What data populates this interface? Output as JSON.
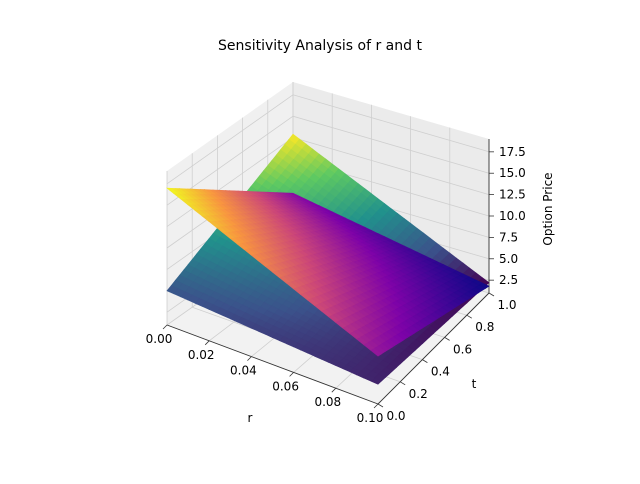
{
  "chart_data": {
    "type": "surface3d",
    "title": "Sensitivity Analysis of r and t",
    "xlabel": "r",
    "ylabel": "t",
    "zlabel": "Option Price",
    "xlim": [
      0.0,
      0.1
    ],
    "ylim": [
      0.0,
      1.0
    ],
    "zlim": [
      1.0,
      19.0
    ],
    "x_ticks": [
      "0.00",
      "0.02",
      "0.04",
      "0.06",
      "0.08",
      "0.10"
    ],
    "y_ticks": [
      "0.0",
      "0.2",
      "0.4",
      "0.6",
      "0.8",
      "1.0"
    ],
    "z_ticks": [
      "2.5",
      "5.0",
      "7.5",
      "10.0",
      "12.5",
      "15.0",
      "17.5"
    ],
    "grid": true,
    "series": [
      {
        "colormap": "viridis",
        "corners": [
          {
            "r": 0.0,
            "t": 0.0,
            "price": 5.0
          },
          {
            "r": 0.1,
            "t": 0.0,
            "price": 3.3
          },
          {
            "r": 0.1,
            "t": 1.0,
            "price": 2.2
          },
          {
            "r": 0.0,
            "t": 1.0,
            "price": 12.9
          }
        ]
      },
      {
        "colormap": "plasma",
        "corners": [
          {
            "r": 0.0,
            "t": 0.0,
            "price": 17.0
          },
          {
            "r": 0.1,
            "t": 0.0,
            "price": 6.6
          },
          {
            "r": 0.1,
            "t": 1.0,
            "price": 1.8
          },
          {
            "r": 0.0,
            "t": 1.0,
            "price": 6.0
          }
        ]
      }
    ]
  }
}
